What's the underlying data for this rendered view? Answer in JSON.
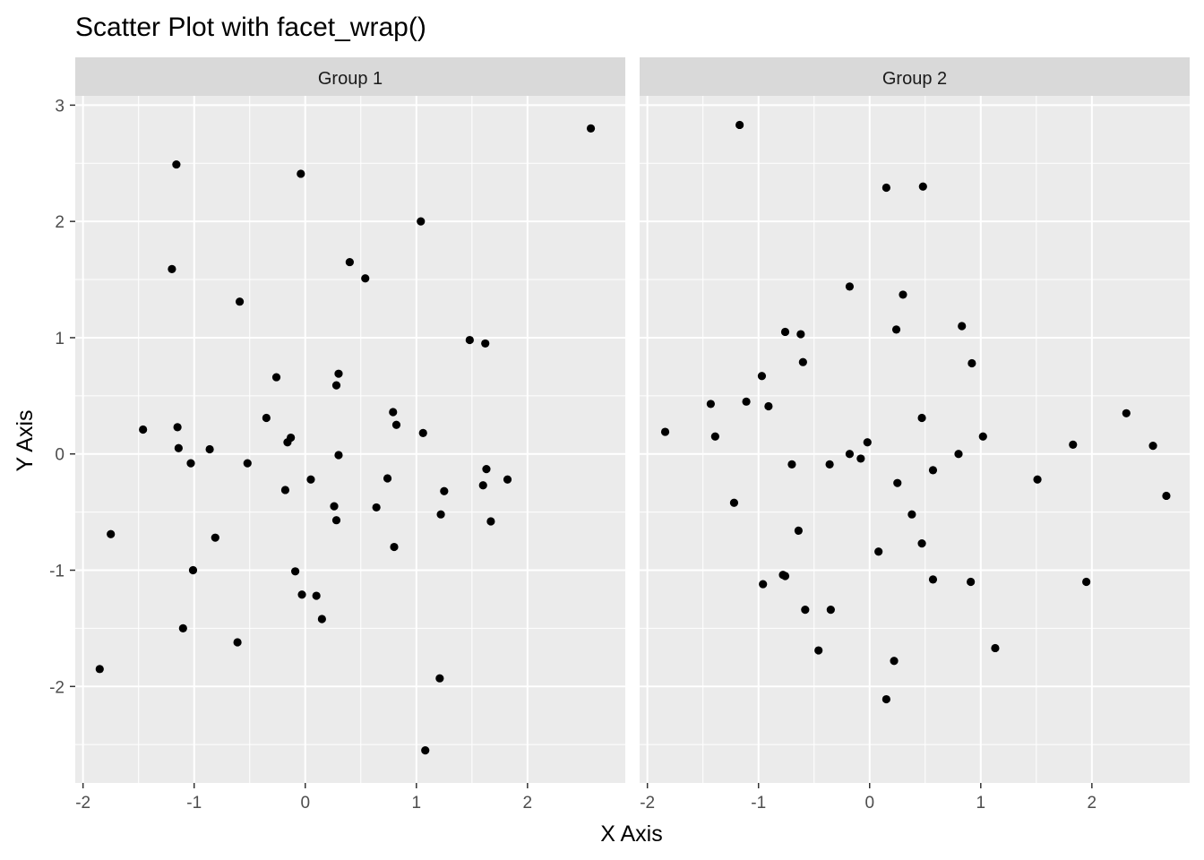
{
  "chart_data": {
    "type": "scatter",
    "title": "Scatter Plot with facet_wrap()",
    "xlabel": "X Axis",
    "ylabel": "Y Axis",
    "xlim": [
      -2.07,
      2.88
    ],
    "ylim": [
      -2.83,
      3.08
    ],
    "x_ticks": [
      -2,
      -1,
      0,
      1,
      2
    ],
    "y_ticks": [
      -2,
      -1,
      0,
      1,
      2,
      3
    ],
    "grid": true,
    "point_color": "#000000",
    "panel_background": "#ebebeb",
    "strip_background": "#d9d9d9",
    "facets": [
      {
        "label": "Group 1",
        "points": [
          [
            2.57,
            2.8
          ],
          [
            -1.16,
            2.49
          ],
          [
            -0.04,
            2.41
          ],
          [
            1.04,
            2.0
          ],
          [
            -1.2,
            1.59
          ],
          [
            0.4,
            1.65
          ],
          [
            0.54,
            1.51
          ],
          [
            -0.59,
            1.31
          ],
          [
            1.48,
            0.98
          ],
          [
            1.62,
            0.95
          ],
          [
            -0.26,
            0.66
          ],
          [
            0.3,
            0.69
          ],
          [
            0.28,
            0.59
          ],
          [
            -0.35,
            0.31
          ],
          [
            0.79,
            0.36
          ],
          [
            0.82,
            0.25
          ],
          [
            1.06,
            0.18
          ],
          [
            -1.46,
            0.21
          ],
          [
            -1.15,
            0.23
          ],
          [
            -1.14,
            0.05
          ],
          [
            -0.86,
            0.04
          ],
          [
            -0.13,
            0.14
          ],
          [
            -0.16,
            0.1
          ],
          [
            -1.03,
            -0.08
          ],
          [
            -0.52,
            -0.08
          ],
          [
            0.3,
            -0.01
          ],
          [
            1.63,
            -0.13
          ],
          [
            1.82,
            -0.22
          ],
          [
            0.05,
            -0.22
          ],
          [
            0.74,
            -0.21
          ],
          [
            -0.18,
            -0.31
          ],
          [
            1.6,
            -0.27
          ],
          [
            1.25,
            -0.32
          ],
          [
            0.26,
            -0.45
          ],
          [
            0.64,
            -0.46
          ],
          [
            1.22,
            -0.52
          ],
          [
            0.28,
            -0.57
          ],
          [
            1.67,
            -0.58
          ],
          [
            -1.75,
            -0.69
          ],
          [
            -0.81,
            -0.72
          ],
          [
            0.8,
            -0.8
          ],
          [
            -1.01,
            -1.0
          ],
          [
            -0.09,
            -1.01
          ],
          [
            -0.03,
            -1.21
          ],
          [
            0.1,
            -1.22
          ],
          [
            0.15,
            -1.42
          ],
          [
            -1.1,
            -1.5
          ],
          [
            -0.61,
            -1.62
          ],
          [
            -1.85,
            -1.85
          ],
          [
            1.21,
            -1.93
          ],
          [
            1.08,
            -2.55
          ]
        ]
      },
      {
        "label": "Group 2",
        "points": [
          [
            -1.17,
            2.83
          ],
          [
            0.15,
            2.29
          ],
          [
            0.48,
            2.3
          ],
          [
            -0.18,
            1.44
          ],
          [
            0.3,
            1.37
          ],
          [
            -0.76,
            1.05
          ],
          [
            -0.62,
            1.03
          ],
          [
            0.24,
            1.07
          ],
          [
            0.83,
            1.1
          ],
          [
            -0.6,
            0.79
          ],
          [
            0.92,
            0.78
          ],
          [
            -0.97,
            0.67
          ],
          [
            -1.11,
            0.45
          ],
          [
            -1.43,
            0.43
          ],
          [
            -0.91,
            0.41
          ],
          [
            0.47,
            0.31
          ],
          [
            2.31,
            0.35
          ],
          [
            -1.84,
            0.19
          ],
          [
            -1.39,
            0.15
          ],
          [
            1.02,
            0.15
          ],
          [
            -0.02,
            0.1
          ],
          [
            1.83,
            0.08
          ],
          [
            2.55,
            0.07
          ],
          [
            -0.18,
            0.0
          ],
          [
            0.8,
            0.0
          ],
          [
            -0.08,
            -0.04
          ],
          [
            -0.7,
            -0.09
          ],
          [
            -0.36,
            -0.09
          ],
          [
            0.57,
            -0.14
          ],
          [
            1.51,
            -0.22
          ],
          [
            0.25,
            -0.25
          ],
          [
            2.67,
            -0.36
          ],
          [
            -1.22,
            -0.42
          ],
          [
            0.38,
            -0.52
          ],
          [
            -0.64,
            -0.66
          ],
          [
            0.47,
            -0.77
          ],
          [
            0.08,
            -0.84
          ],
          [
            -0.78,
            -1.04
          ],
          [
            -0.76,
            -1.05
          ],
          [
            0.57,
            -1.08
          ],
          [
            0.91,
            -1.1
          ],
          [
            1.95,
            -1.1
          ],
          [
            -0.96,
            -1.12
          ],
          [
            -0.58,
            -1.34
          ],
          [
            -0.35,
            -1.34
          ],
          [
            1.13,
            -1.67
          ],
          [
            -0.46,
            -1.69
          ],
          [
            0.22,
            -1.78
          ],
          [
            0.15,
            -2.11
          ]
        ]
      }
    ]
  }
}
